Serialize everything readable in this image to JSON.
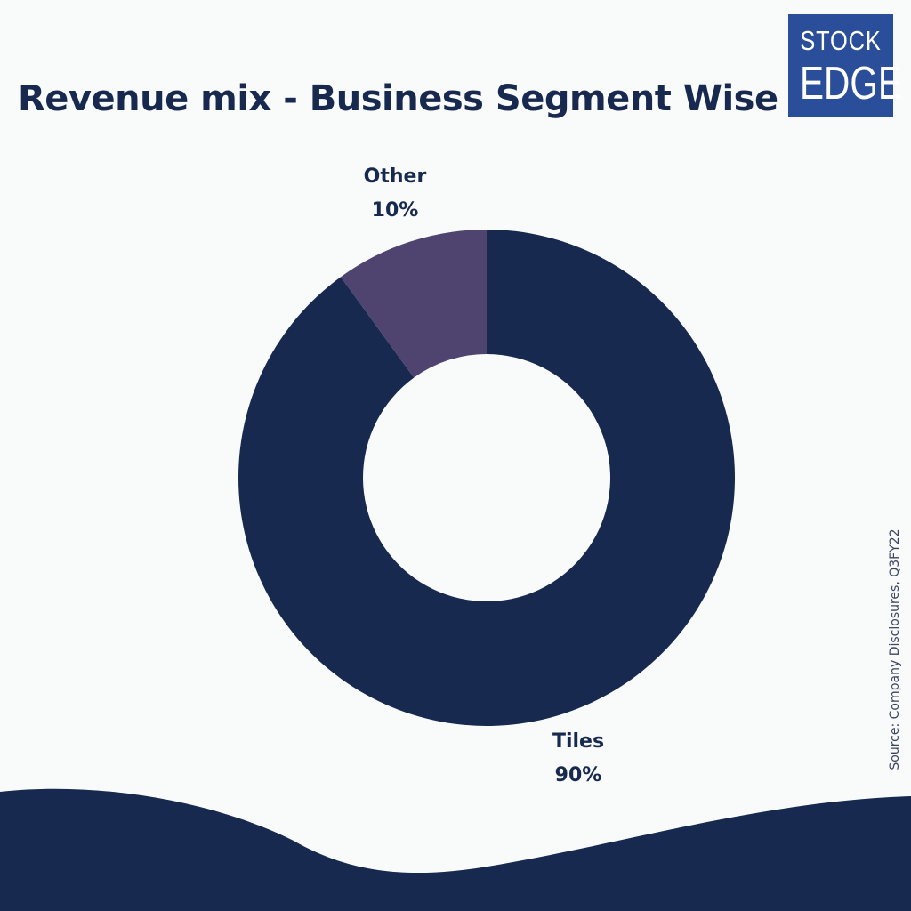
{
  "title": "Revenue mix - Business Segment Wise",
  "logo": {
    "line1": "STOCK",
    "line2": "EDGE",
    "color": "#2a4e9a"
  },
  "source": "Source: Company Disclosures, Q3FY22",
  "colors": {
    "background": "#f9fafa",
    "text": "#17294f",
    "wave": "#17294f"
  },
  "chart_data": {
    "type": "pie",
    "donut": true,
    "title": "Revenue mix - Business Segment Wise",
    "slices": [
      {
        "label": "Tiles",
        "value": 90,
        "value_label": "90%",
        "color": "#17294f"
      },
      {
        "label": "Other",
        "value": 10,
        "value_label": "10%",
        "color": "#4f4470"
      }
    ]
  }
}
